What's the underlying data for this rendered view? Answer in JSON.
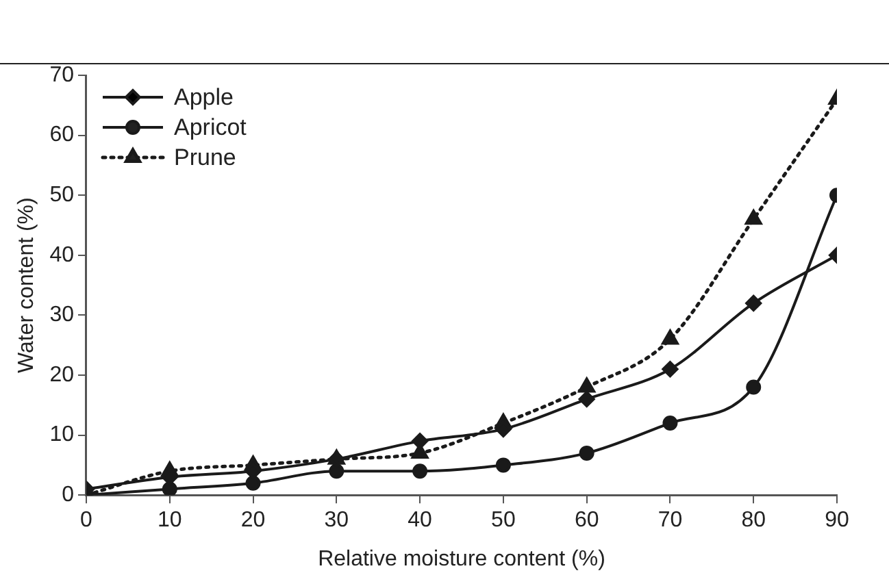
{
  "chart_data": {
    "type": "line",
    "xlabel": "Relative moisture content (%)",
    "ylabel": "Water content (%)",
    "x": [
      0,
      10,
      20,
      30,
      40,
      50,
      60,
      70,
      80,
      90
    ],
    "series": [
      {
        "name": "Apple",
        "color": "#1a1a1a",
        "marker": "diamond",
        "line_style": "solid",
        "values": [
          1,
          3,
          4,
          6,
          9,
          11,
          16,
          21,
          32,
          40
        ]
      },
      {
        "name": "Apricot",
        "color": "#1a1a1a",
        "marker": "circle",
        "line_style": "solid",
        "values": [
          0,
          1,
          2,
          4,
          4,
          5,
          7,
          12,
          18,
          50
        ]
      },
      {
        "name": "Prune",
        "color": "#1a1a1a",
        "marker": "triangle",
        "line_style": "dotted",
        "values": [
          0,
          4,
          5,
          6,
          7,
          12,
          18,
          26,
          46,
          66
        ]
      }
    ],
    "xlim": [
      0,
      90
    ],
    "xticks": [
      0,
      10,
      20,
      30,
      40,
      50,
      60,
      70,
      80,
      90
    ],
    "ylim": [
      0,
      70
    ],
    "yticks": [
      0,
      10,
      20,
      30,
      40,
      50,
      60,
      70
    ],
    "grid": false,
    "legend": "top left"
  }
}
